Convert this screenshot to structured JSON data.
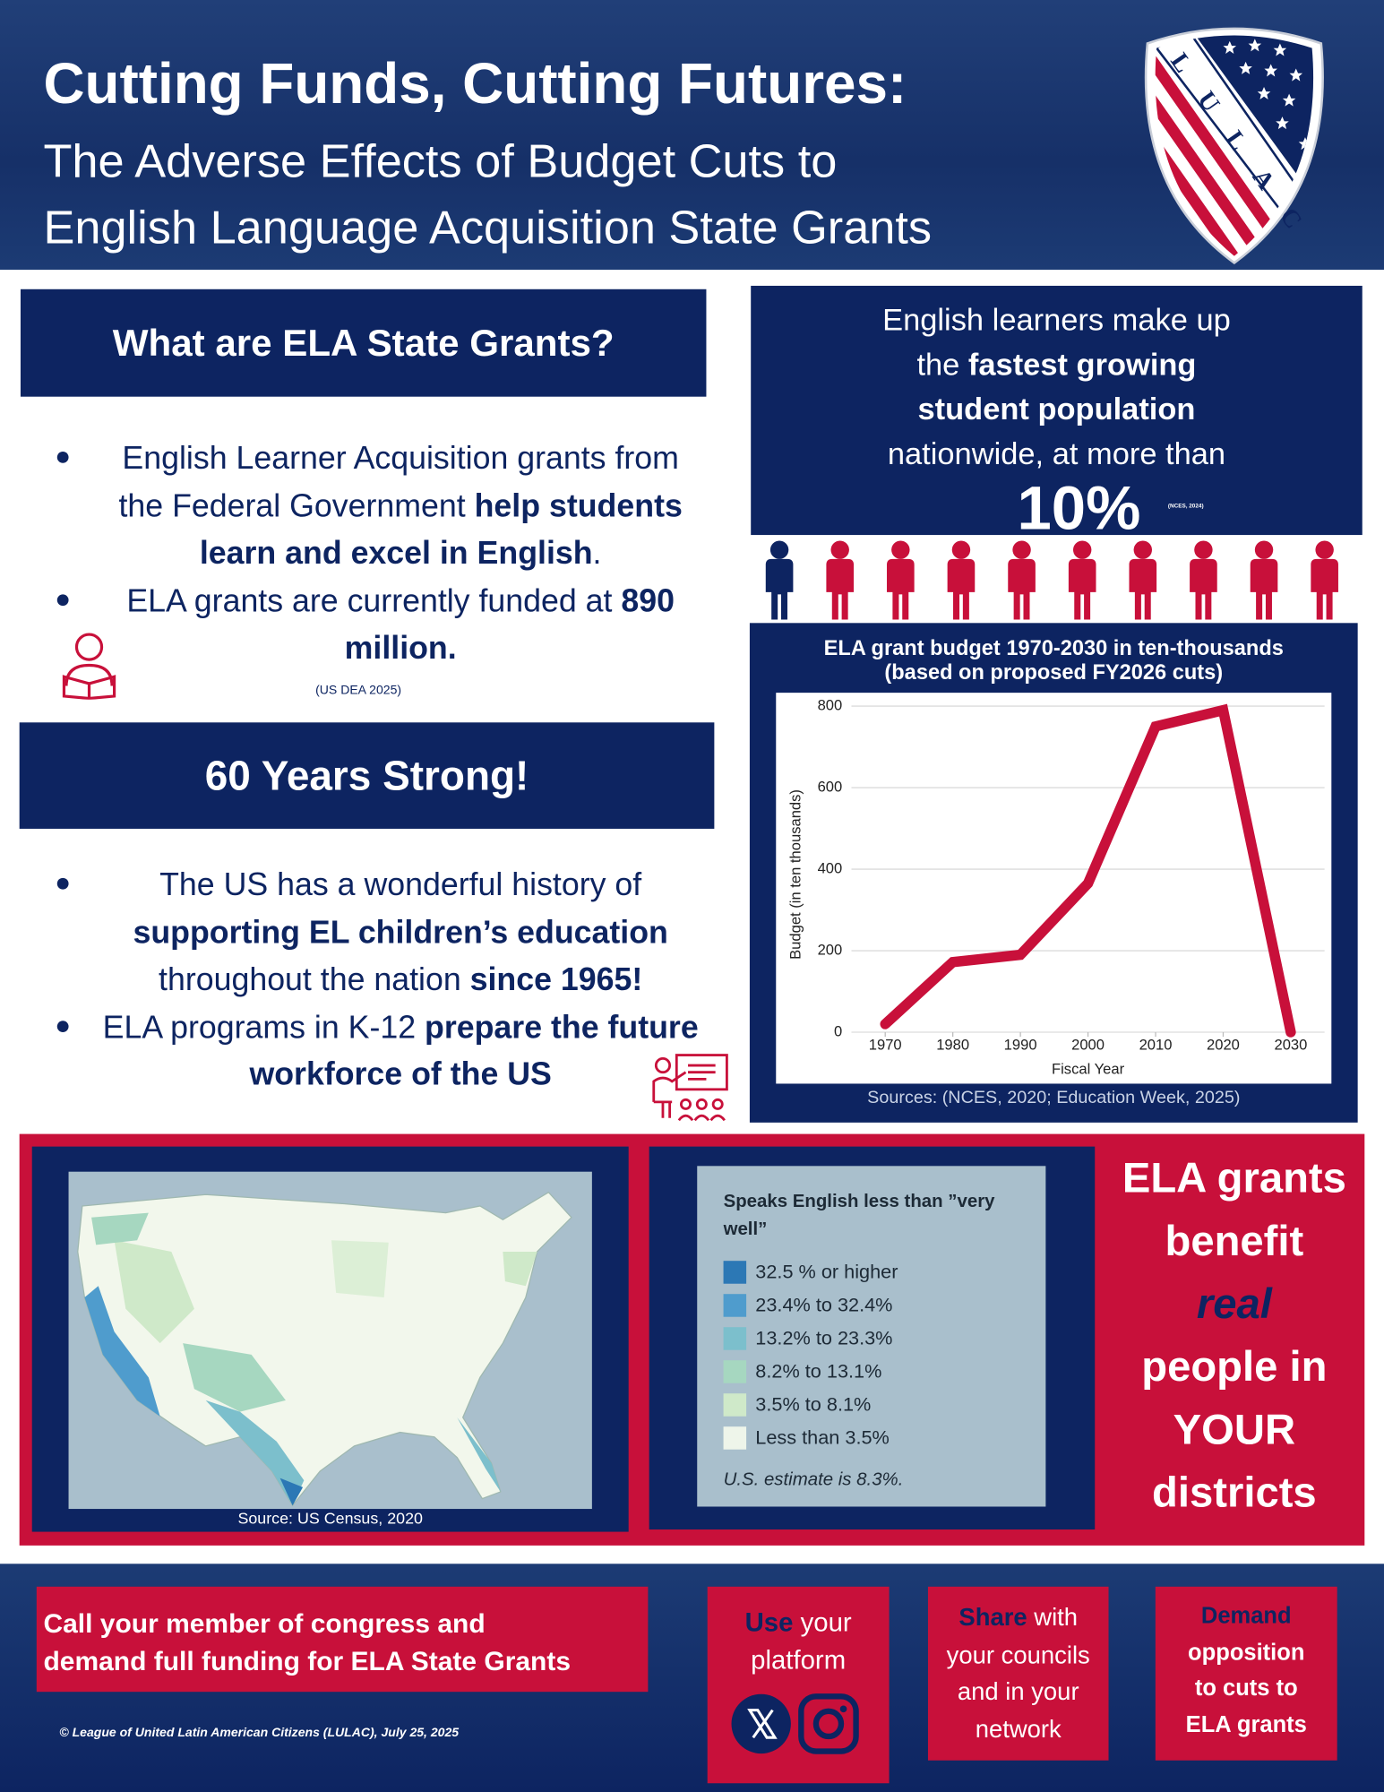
{
  "header": {
    "title": "Cutting Funds, Cutting Futures:",
    "subtitle_lines": [
      "The Adverse Effects of Budget Cuts to",
      "English Language Acquisition State Grants"
    ]
  },
  "logo": {
    "letters": [
      "L",
      "U",
      "L",
      "A",
      "C"
    ]
  },
  "grants": {
    "heading": "What are ELA State Grants?",
    "bullets": [
      [
        {
          "text": "English Learner Acquisition grants from the Federal Government "
        },
        {
          "text": "help students learn and excel in English",
          "bold": true
        },
        {
          "text": "."
        }
      ],
      [
        {
          "text": "ELA grants are currently funded at "
        },
        {
          "text": "890 million.",
          "bold": true
        }
      ]
    ],
    "source": "(US DEA 2025)"
  },
  "history": {
    "heading": "60 Years Strong!",
    "bullets": [
      [
        {
          "text": "The US has a wonderful history of "
        },
        {
          "text": "supporting EL children’s education",
          "bold": true
        },
        {
          "text": " throughout the nation "
        },
        {
          "text": "since 1965!",
          "bold": true
        }
      ],
      [
        {
          "text": "ELA programs in K-12 "
        },
        {
          "text": "prepare the future workforce of the US",
          "bold": true
        }
      ]
    ]
  },
  "stat": {
    "lines": [
      [
        {
          "text": "English learners make up"
        }
      ],
      [
        {
          "text": "the "
        },
        {
          "text": "fastest growing",
          "bold": true
        }
      ],
      [
        {
          "text": "student population",
          "bold": true
        }
      ],
      [
        {
          "text": "nationwide, at more than"
        }
      ]
    ],
    "figure": "10%",
    "source": "(NCES, 2024)"
  },
  "chart_data": {
    "type": "line",
    "title": [
      "ELA grant budget 1970-2030 in ten-thousands",
      "(based on proposed FY2026 cuts)"
    ],
    "x": [
      1970,
      1980,
      1990,
      2000,
      2010,
      2020,
      2030
    ],
    "values": [
      20,
      172,
      190,
      365,
      750,
      790,
      0
    ],
    "color": "#c8103a",
    "xlim": [
      1965,
      2035
    ],
    "ylim": [
      0,
      830
    ],
    "xticks": [
      1970,
      1980,
      1990,
      2000,
      2010,
      2020,
      2030
    ],
    "yticks": [
      0,
      200,
      400,
      600,
      800
    ],
    "grid": true,
    "x_label": "Fiscal Year",
    "y_label": "Budget (in ten thousands)",
    "source": "Sources: (NCES, 2020; Education Week, 2025)"
  },
  "map": {
    "source": "Source: US Census, 2020"
  },
  "legend": {
    "title": "Speaks English less than ”very well”",
    "items": [
      {
        "label": "32.5 % or higher",
        "color": "#2c78b5"
      },
      {
        "label": "23.4% to 32.4%",
        "color": "#4f9ccd"
      },
      {
        "label": "13.2% to 23.3%",
        "color": "#7cbfcc"
      },
      {
        "label": "8.2% to 13.1%",
        "color": "#a6d7c0"
      },
      {
        "label": "3.5% to 8.1%",
        "color": "#cfe9c9"
      },
      {
        "label": "Less than 3.5%",
        "color": "#eef5ea"
      }
    ],
    "note": "U.S. estimate is 8.3%."
  },
  "callout": {
    "lines": [
      [
        {
          "text": "ELA grants"
        }
      ],
      [
        {
          "text": "benefit"
        }
      ],
      [
        {
          "text": "real",
          "italic": true,
          "accent": true
        }
      ],
      [
        {
          "text": "people in"
        }
      ],
      [
        {
          "text": "YOUR"
        }
      ],
      [
        {
          "text": "districts"
        }
      ]
    ]
  },
  "footer": {
    "call_lines": [
      [
        {
          "text": "Call your member of congress and"
        }
      ],
      [
        {
          "text": "demand full funding for ELA State Grants"
        }
      ]
    ],
    "actions": [
      [
        [
          {
            "text": "Use",
            "bold": true,
            "accent": true
          },
          {
            "text": " your"
          }
        ],
        [
          {
            "text": "platform"
          }
        ]
      ],
      [
        [
          {
            "text": "Share",
            "bold": true,
            "accent": true
          },
          {
            "text": " with"
          }
        ],
        [
          {
            "text": "your councils"
          }
        ],
        [
          {
            "text": "and in your"
          }
        ],
        [
          {
            "text": "network"
          }
        ]
      ],
      [
        [
          {
            "text": "Demand",
            "bold": true,
            "accent": true
          }
        ],
        [
          {
            "text": "opposition",
            "bold": true
          }
        ],
        [
          {
            "text": "to cuts to",
            "bold": true
          }
        ],
        [
          {
            "text": "ELA grants",
            "bold": true
          }
        ]
      ]
    ],
    "copyright": "© League of United Latin American Citizens (LULAC), July 25, 2025"
  }
}
